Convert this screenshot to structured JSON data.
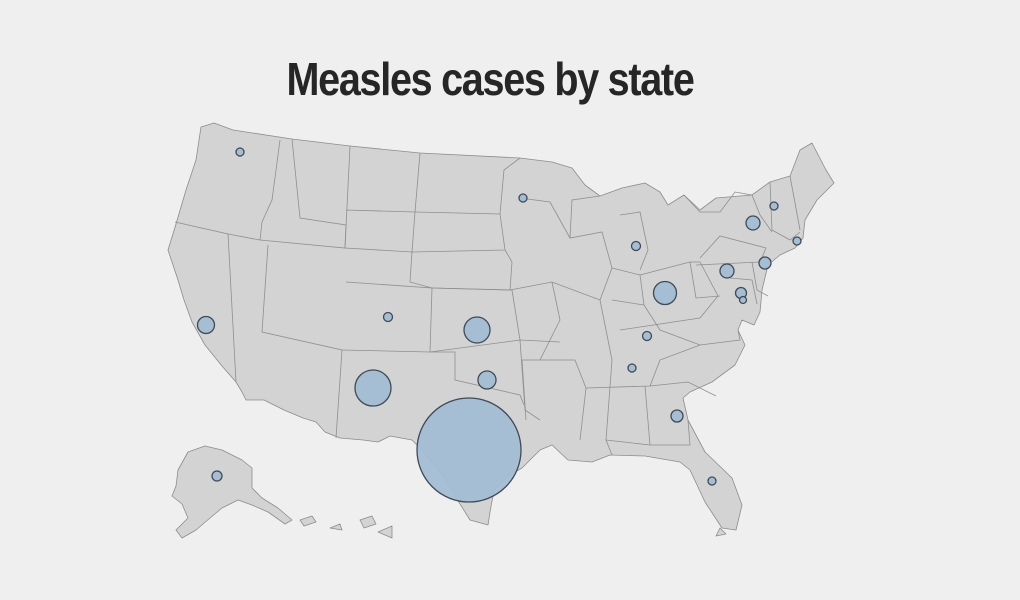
{
  "title": "Measles cases by state",
  "colors": {
    "background": "#efefef",
    "land": "#d3d3d3",
    "bubble_fill": "#a3bdd3",
    "bubble_stroke": "#3f4a55"
  },
  "bubble_relative_sizes": [
    {
      "state": "Texas",
      "size": 52
    },
    {
      "state": "New Mexico",
      "size": 18
    },
    {
      "state": "Kansas",
      "size": 13
    },
    {
      "state": "Ohio",
      "size": 11.5
    },
    {
      "state": "Oklahoma",
      "size": 9
    },
    {
      "state": "California",
      "size": 8.5
    },
    {
      "state": "Pennsylvania",
      "size": 7
    },
    {
      "state": "New York",
      "size": 7
    },
    {
      "state": "Georgia",
      "size": 6
    },
    {
      "state": "Maryland",
      "size": 5.5
    },
    {
      "state": "New Jersey",
      "size": 6
    },
    {
      "state": "Alaska",
      "size": 5
    },
    {
      "state": "Michigan",
      "size": 4.5
    },
    {
      "state": "Colorado",
      "size": 4.5
    },
    {
      "state": "Kentucky",
      "size": 4.5
    },
    {
      "state": "Tennessee",
      "size": 4
    },
    {
      "state": "Florida",
      "size": 4
    },
    {
      "state": "Minnesota",
      "size": 4
    },
    {
      "state": "Washington",
      "size": 4
    },
    {
      "state": "Vermont",
      "size": 4
    },
    {
      "state": "Rhode Island",
      "size": 4
    },
    {
      "state": "District of Columbia",
      "size": 3.5
    }
  ]
}
